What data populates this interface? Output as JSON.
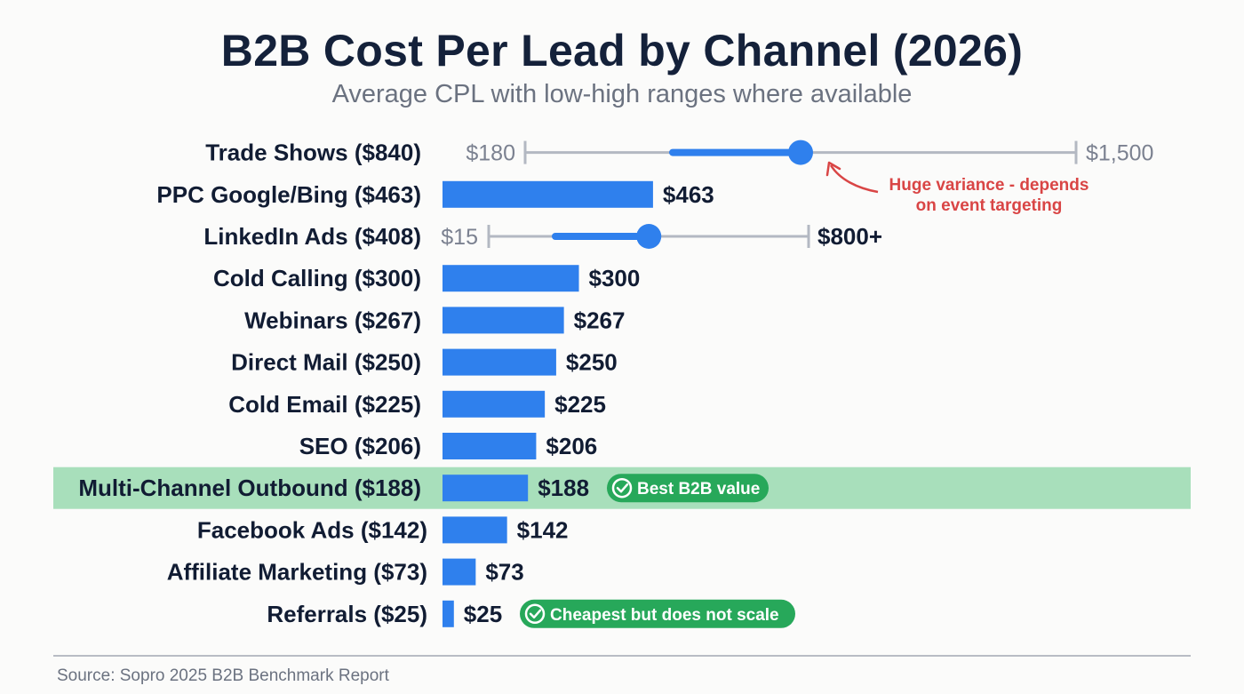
{
  "chart_data": {
    "type": "bar",
    "title": "B2B Cost Per Lead by Channel (2026)",
    "subtitle": "Average CPL with low-high ranges where available",
    "unit": "$",
    "categories": [
      "Trade Shows ($840)",
      "PPC Google/Bing ($463)",
      "LinkedIn Ads ($408)",
      "Cold Calling ($300)",
      "Webinars ($267)",
      "Direct Mail ($250)",
      "Cold Email ($225)",
      "SEO ($206)",
      "Multi-Channel Outbound ($188)",
      "Facebook Ads ($142)",
      "Affiliate Marketing ($73)",
      "Referrals ($25)"
    ],
    "values": [
      840,
      463,
      408,
      300,
      267,
      250,
      225,
      206,
      188,
      142,
      73,
      25
    ],
    "value_labels": [
      "",
      "$463",
      "",
      "$300",
      "$267",
      "$250",
      "$225",
      "$206",
      "$188",
      "$142",
      "$73",
      "$25"
    ],
    "ranges": [
      {
        "index": 0,
        "low": 180,
        "high": 1500,
        "low_label": "$180",
        "high_label": "$1,500"
      },
      {
        "index": 2,
        "low": 15,
        "high": 800,
        "low_label": "$15",
        "high_label": "$800+"
      }
    ],
    "highlight_index": 8,
    "badges": [
      {
        "index": 8,
        "text": "Best B2B value"
      },
      {
        "index": 11,
        "text": "Cheapest but does not scale"
      }
    ],
    "annotation": {
      "index": 0,
      "lines": [
        "Huge variance - depends",
        "on event targeting"
      ]
    }
  },
  "footer": {
    "source": "Source: Sopro 2025 B2B Benchmark Report"
  },
  "colors": {
    "bar": "#2f80ed",
    "range_line": "#b3b8c2",
    "highlight_row": "#a8dfbb",
    "badge": "#27a85a",
    "annotation": "#d94545",
    "text": "#111c33"
  }
}
